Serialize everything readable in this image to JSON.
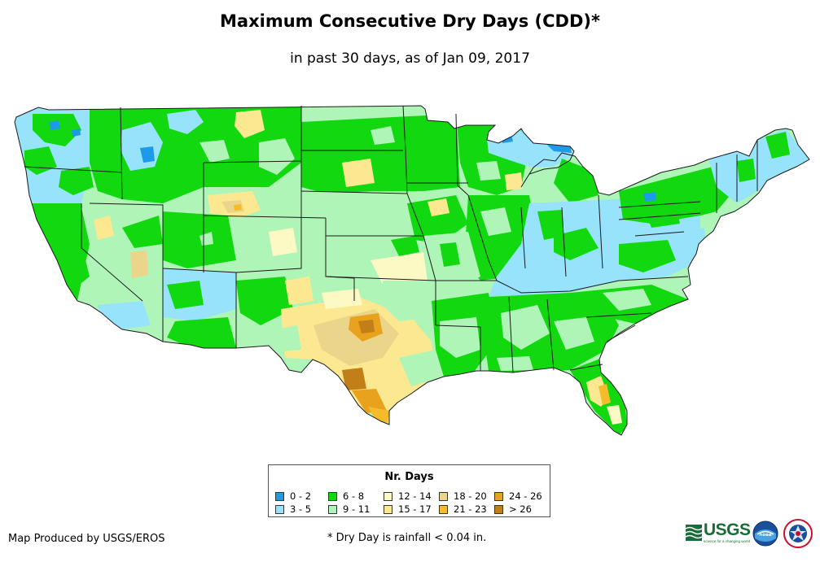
{
  "header": {
    "title": "Maximum Consecutive Dry Days (CDD)*",
    "subtitle": "in past 30 days, as of Jan 09, 2017"
  },
  "map": {
    "region": "Contiguous United States",
    "colors": {
      "c0_2": "#1e9be8",
      "c3_5": "#96e3fb",
      "c6_8": "#12d80f",
      "c9_11": "#b0f5b8",
      "c12_14": "#fdf9c4",
      "c15_17": "#fbe890",
      "c18_20": "#ead58a",
      "c21_23": "#f6bb2b",
      "c24_26": "#e9a21d",
      "c_gt26": "#c27e17",
      "border": "#1a1a1a"
    }
  },
  "legend": {
    "title": "Nr. Days",
    "items": [
      {
        "label": "0 - 2",
        "color": "#1e9be8"
      },
      {
        "label": "3 - 5",
        "color": "#96e3fb"
      },
      {
        "label": "6 - 8",
        "color": "#12d80f"
      },
      {
        "label": "9 - 11",
        "color": "#b0f5b8"
      },
      {
        "label": "12 - 14",
        "color": "#fdf9c4"
      },
      {
        "label": "15 - 17",
        "color": "#fbe890"
      },
      {
        "label": "18 - 20",
        "color": "#ead58a"
      },
      {
        "label": "21 - 23",
        "color": "#f6bb2b"
      },
      {
        "label": "24 - 26",
        "color": "#e9a21d"
      },
      {
        "label": "> 26",
        "color": "#c27e17"
      }
    ]
  },
  "footer": {
    "credit": "Map Produced by USGS/EROS",
    "note": "* Dry Day is rainfall < 0.04 in."
  },
  "logos": {
    "usgs": "USGS",
    "usgs_tagline": "science for a changing world",
    "noaa": "noaa",
    "nws": "National Weather Service"
  }
}
